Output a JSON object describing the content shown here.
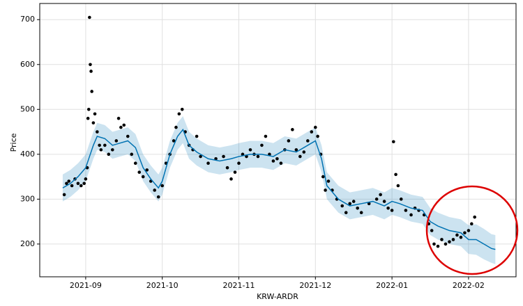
{
  "chart_data": {
    "type": "forecast",
    "xlabel": "KRW-ARDR",
    "ylabel": "Price",
    "xlim": [
      8.4,
      14.62
    ],
    "ylim": [
      127,
      736
    ],
    "xticks": [
      {
        "value": 9,
        "label": "2021-09"
      },
      {
        "value": 10,
        "label": "2021-10"
      },
      {
        "value": 11,
        "label": "2021-11"
      },
      {
        "value": 12,
        "label": "2021-12"
      },
      {
        "value": 13,
        "label": "2022-01"
      },
      {
        "value": 14,
        "label": "2022-02"
      }
    ],
    "yticks": [
      200,
      300,
      400,
      500,
      600,
      700
    ],
    "grid": true,
    "forecast": {
      "color": "#0072b2",
      "x": [
        8.7,
        8.8,
        8.9,
        9.0,
        9.1,
        9.15,
        9.25,
        9.35,
        9.45,
        9.55,
        9.65,
        9.75,
        9.85,
        9.95,
        10.0,
        10.1,
        10.2,
        10.27,
        10.35,
        10.45,
        10.6,
        10.75,
        10.9,
        11.0,
        11.15,
        11.3,
        11.45,
        11.6,
        11.75,
        11.9,
        12.0,
        12.08,
        12.15,
        12.3,
        12.45,
        12.6,
        12.75,
        12.9,
        13.0,
        13.1,
        13.25,
        13.4,
        13.5,
        13.6,
        13.75,
        13.9,
        14.0,
        14.1,
        14.2,
        14.3,
        14.35
      ],
      "values": [
        325,
        335,
        350,
        370,
        420,
        440,
        435,
        420,
        425,
        430,
        415,
        370,
        345,
        325,
        340,
        400,
        440,
        455,
        420,
        405,
        390,
        385,
        390,
        395,
        400,
        400,
        395,
        410,
        405,
        420,
        430,
        390,
        330,
        300,
        285,
        290,
        295,
        285,
        295,
        290,
        280,
        275,
        250,
        240,
        230,
        225,
        210,
        210,
        200,
        190,
        188
      ],
      "lower": [
        295,
        305,
        320,
        340,
        390,
        410,
        405,
        390,
        395,
        400,
        385,
        340,
        315,
        295,
        310,
        370,
        410,
        425,
        390,
        375,
        360,
        355,
        360,
        365,
        370,
        370,
        365,
        380,
        375,
        390,
        400,
        360,
        300,
        270,
        255,
        260,
        265,
        255,
        265,
        260,
        250,
        245,
        220,
        210,
        200,
        195,
        178,
        176,
        166,
        158,
        155
      ],
      "upper": [
        355,
        365,
        380,
        400,
        450,
        470,
        465,
        450,
        455,
        460,
        445,
        400,
        375,
        355,
        370,
        430,
        470,
        485,
        450,
        435,
        420,
        415,
        420,
        425,
        430,
        430,
        425,
        440,
        435,
        450,
        460,
        420,
        360,
        330,
        315,
        320,
        325,
        315,
        325,
        320,
        310,
        305,
        280,
        270,
        260,
        255,
        242,
        244,
        234,
        222,
        220
      ]
    },
    "observed": {
      "color": "#000000",
      "x": [
        8.72,
        8.75,
        8.78,
        8.82,
        8.86,
        8.9,
        8.94,
        8.98,
        9.0,
        9.02,
        9.03,
        9.04,
        9.05,
        9.06,
        9.07,
        9.08,
        9.1,
        9.12,
        9.15,
        9.18,
        9.2,
        9.25,
        9.3,
        9.35,
        9.4,
        9.43,
        9.46,
        9.5,
        9.55,
        9.6,
        9.65,
        9.7,
        9.75,
        9.8,
        9.85,
        9.9,
        9.95,
        10.0,
        10.05,
        10.1,
        10.15,
        10.18,
        10.22,
        10.26,
        10.3,
        10.35,
        10.4,
        10.45,
        10.5,
        10.6,
        10.7,
        10.8,
        10.85,
        10.9,
        10.95,
        11.0,
        11.05,
        11.1,
        11.15,
        11.2,
        11.25,
        11.3,
        11.35,
        11.4,
        11.45,
        11.5,
        11.55,
        11.6,
        11.65,
        11.7,
        11.75,
        11.8,
        11.85,
        11.9,
        11.95,
        12.0,
        12.03,
        12.07,
        12.1,
        12.13,
        12.17,
        12.22,
        12.28,
        12.35,
        12.4,
        12.45,
        12.5,
        12.55,
        12.6,
        12.7,
        12.8,
        12.85,
        12.9,
        12.95,
        13.0,
        13.02,
        13.05,
        13.08,
        13.12,
        13.18,
        13.25,
        13.3,
        13.35,
        13.42,
        13.48,
        13.52,
        13.55,
        13.6,
        13.65,
        13.7,
        13.75,
        13.8,
        13.85,
        13.9,
        13.95,
        14.0,
        14.04,
        14.08
      ],
      "values": [
        310,
        335,
        340,
        330,
        345,
        335,
        330,
        335,
        345,
        370,
        480,
        500,
        705,
        600,
        585,
        540,
        470,
        490,
        450,
        420,
        410,
        420,
        400,
        410,
        430,
        480,
        460,
        465,
        440,
        400,
        380,
        360,
        350,
        365,
        340,
        320,
        305,
        330,
        380,
        400,
        430,
        460,
        490,
        500,
        450,
        420,
        410,
        440,
        395,
        380,
        390,
        395,
        370,
        345,
        360,
        380,
        400,
        395,
        410,
        400,
        395,
        420,
        440,
        400,
        385,
        390,
        380,
        410,
        430,
        455,
        410,
        395,
        405,
        430,
        450,
        460,
        440,
        400,
        350,
        320,
        340,
        320,
        300,
        285,
        270,
        290,
        295,
        280,
        270,
        290,
        300,
        310,
        295,
        280,
        275,
        428,
        355,
        330,
        300,
        275,
        265,
        280,
        275,
        265,
        245,
        230,
        200,
        195,
        210,
        200,
        205,
        210,
        220,
        215,
        225,
        230,
        245,
        260
      ]
    }
  }
}
